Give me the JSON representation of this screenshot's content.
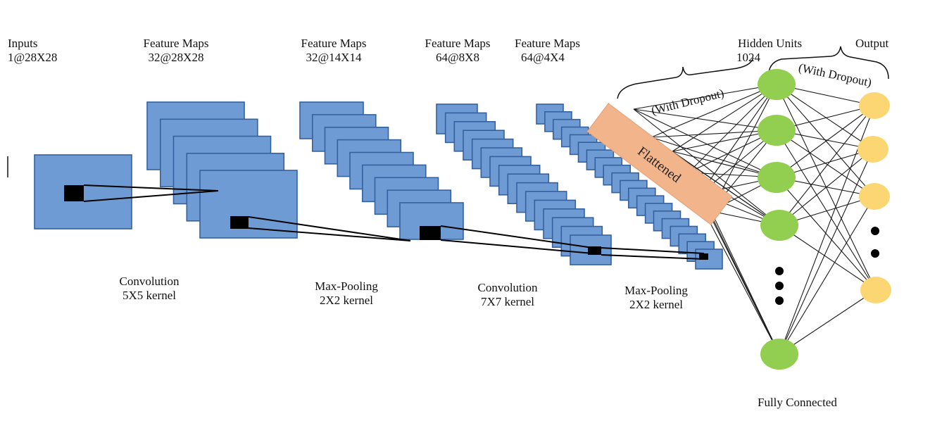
{
  "labels": {
    "inputs": {
      "title": "Inputs",
      "size": "1@28X28"
    },
    "fm1": {
      "title": "Feature Maps",
      "size": "32@28X28"
    },
    "fm2": {
      "title": "Feature Maps",
      "size": "32@14X14"
    },
    "fm3": {
      "title": "Feature Maps",
      "size": "64@8X8"
    },
    "fm4": {
      "title": "Feature Maps",
      "size": "64@4X4"
    },
    "hidden": {
      "title": "Hidden Units",
      "size": "1024"
    },
    "output": {
      "title": "Output"
    }
  },
  "operations": {
    "conv1": {
      "name": "Convolution",
      "kernel": "5X5 kernel"
    },
    "pool1": {
      "name": "Max-Pooling",
      "kernel": "2X2 kernel"
    },
    "conv2": {
      "name": "Convolution",
      "kernel": "7X7 kernel"
    },
    "pool2": {
      "name": "Max-Pooling",
      "kernel": "2X2 kernel"
    }
  },
  "flattened": "Flattened",
  "dropout1": "(With Dropout)",
  "dropout2": "(With Dropout)",
  "fully_connected": "Fully Connected",
  "colors": {
    "feature_map": "#6f9bd4",
    "feature_map_border": "#35609f",
    "hidden_node": "#92cf50",
    "output_node": "#fcd672",
    "flatten_bar": "#f2b48a"
  }
}
